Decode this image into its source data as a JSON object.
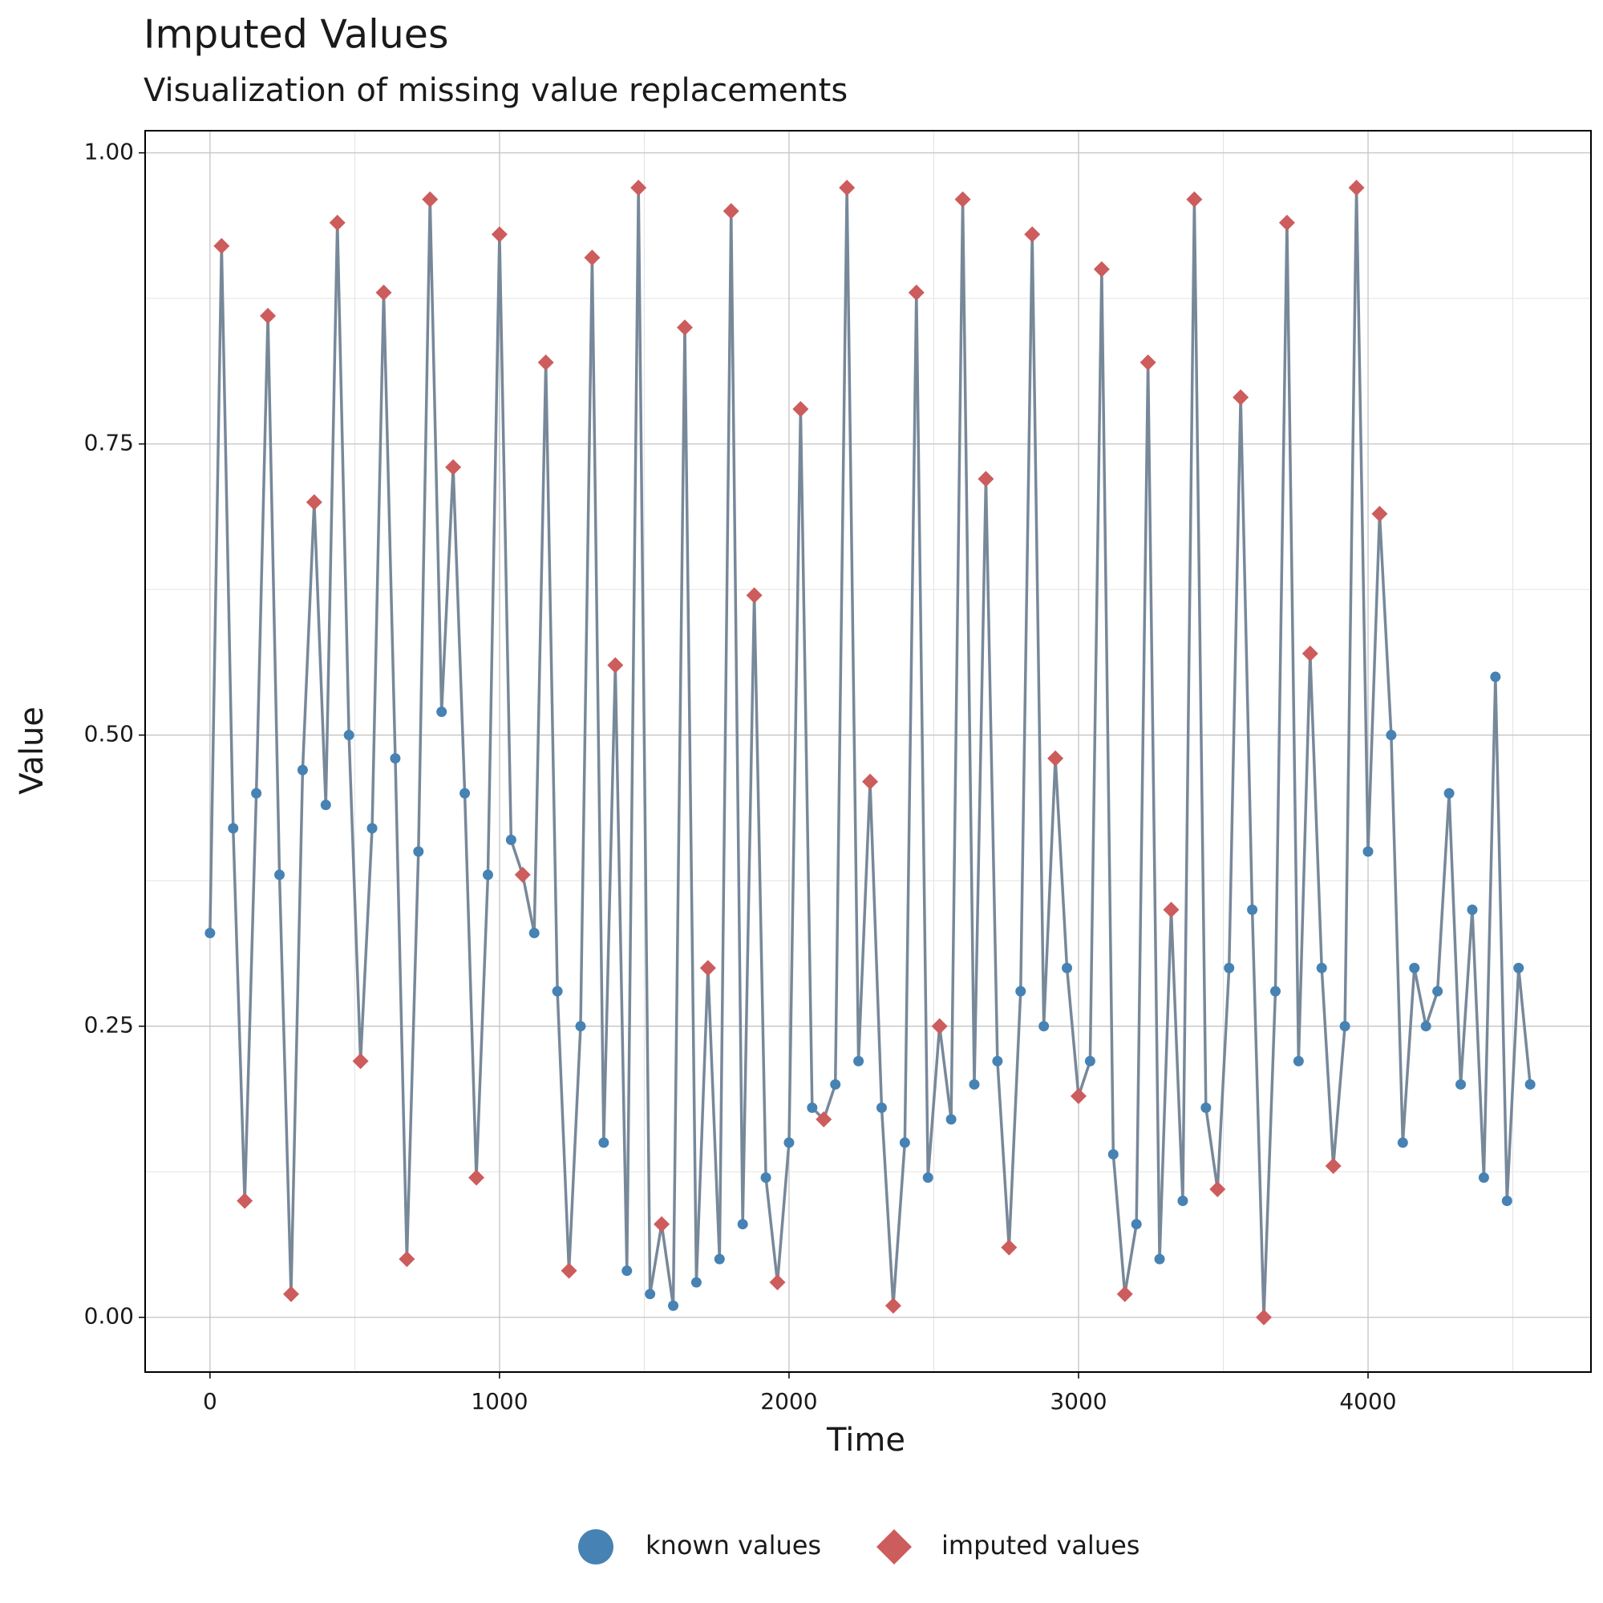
{
  "chart_data": {
    "type": "line",
    "title": "Imputed Values",
    "subtitle": "Visualization of missing value replacements",
    "x_label": "Time",
    "y_label": "Value",
    "xlim": [
      -224,
      4770
    ],
    "ylim": [
      -0.047,
      1.019
    ],
    "xticks": [
      0,
      1000,
      2000,
      3000,
      4000
    ],
    "yticks": [
      {
        "value": 0,
        "label": "0.00"
      },
      {
        "value": 0.25,
        "label": "0.25"
      },
      {
        "value": 0.5,
        "label": "0.50"
      },
      {
        "value": 0.75,
        "label": "0.75"
      },
      {
        "value": 1,
        "label": "1.00"
      }
    ],
    "x_minor_ticks": [
      500,
      1500,
      2500,
      3500,
      4500
    ],
    "y_minor_ticks": [
      0.125,
      0.375,
      0.625,
      0.875
    ],
    "grid": true,
    "line_color": "#778899",
    "legend_position": "bottom",
    "series": [
      {
        "name": "known values",
        "color": "#4682b4",
        "marker": "circle",
        "x": [
          0,
          80,
          160,
          240,
          320,
          400,
          480,
          560,
          640,
          720,
          800,
          880,
          960,
          1040,
          1120,
          1200,
          1280,
          1360,
          1440,
          1520,
          1600,
          1680,
          1760,
          1840,
          1920,
          2000,
          2080,
          2160,
          2240,
          2320,
          2400,
          2480,
          2560,
          2640,
          2720,
          2800,
          2880,
          2960,
          3040,
          3120,
          3200,
          3280,
          3360,
          3440,
          3520,
          3600,
          3680,
          3760,
          3840,
          3920,
          4000,
          4080,
          4120,
          4160,
          4200,
          4240,
          4280,
          4320,
          4360,
          4400,
          4440,
          4480,
          4520,
          4560
        ],
        "values": [
          0.33,
          0.42,
          0.45,
          0.38,
          0.47,
          0.44,
          0.5,
          0.42,
          0.48,
          0.4,
          0.52,
          0.45,
          0.38,
          0.41,
          0.33,
          0.28,
          0.25,
          0.15,
          0.04,
          0.02,
          0.01,
          0.03,
          0.05,
          0.08,
          0.12,
          0.15,
          0.18,
          0.2,
          0.22,
          0.18,
          0.15,
          0.12,
          0.17,
          0.2,
          0.22,
          0.28,
          0.25,
          0.3,
          0.22,
          0.14,
          0.08,
          0.05,
          0.1,
          0.18,
          0.3,
          0.35,
          0.28,
          0.22,
          0.3,
          0.25,
          0.4,
          0.5,
          0.15,
          0.3,
          0.25,
          0.28,
          0.45,
          0.2,
          0.35,
          0.12,
          0.55,
          0.1,
          0.3,
          0.2
        ]
      },
      {
        "name": "imputed values",
        "color": "#cd5c5c",
        "marker": "diamond",
        "x": [
          40,
          120,
          200,
          280,
          360,
          440,
          520,
          600,
          680,
          760,
          840,
          920,
          1000,
          1080,
          1160,
          1240,
          1320,
          1400,
          1480,
          1560,
          1640,
          1720,
          1800,
          1880,
          1960,
          2040,
          2120,
          2200,
          2280,
          2360,
          2440,
          2520,
          2600,
          2680,
          2760,
          2840,
          2920,
          3000,
          3080,
          3160,
          3240,
          3320,
          3400,
          3480,
          3560,
          3640,
          3720,
          3800,
          3880,
          3960,
          4040
        ],
        "values": [
          0.92,
          0.1,
          0.86,
          0.02,
          0.7,
          0.94,
          0.22,
          0.88,
          0.05,
          0.96,
          0.73,
          0.12,
          0.93,
          0.38,
          0.82,
          0.04,
          0.91,
          0.56,
          0.97,
          0.08,
          0.85,
          0.3,
          0.95,
          0.62,
          0.03,
          0.78,
          0.17,
          0.97,
          0.46,
          0.01,
          0.88,
          0.25,
          0.96,
          0.72,
          0.06,
          0.93,
          0.48,
          0.19,
          0.9,
          0.02,
          0.82,
          0.35,
          0.96,
          0.11,
          0.79,
          0.0,
          0.94,
          0.57,
          0.13,
          0.97,
          0.69
        ]
      }
    ]
  }
}
